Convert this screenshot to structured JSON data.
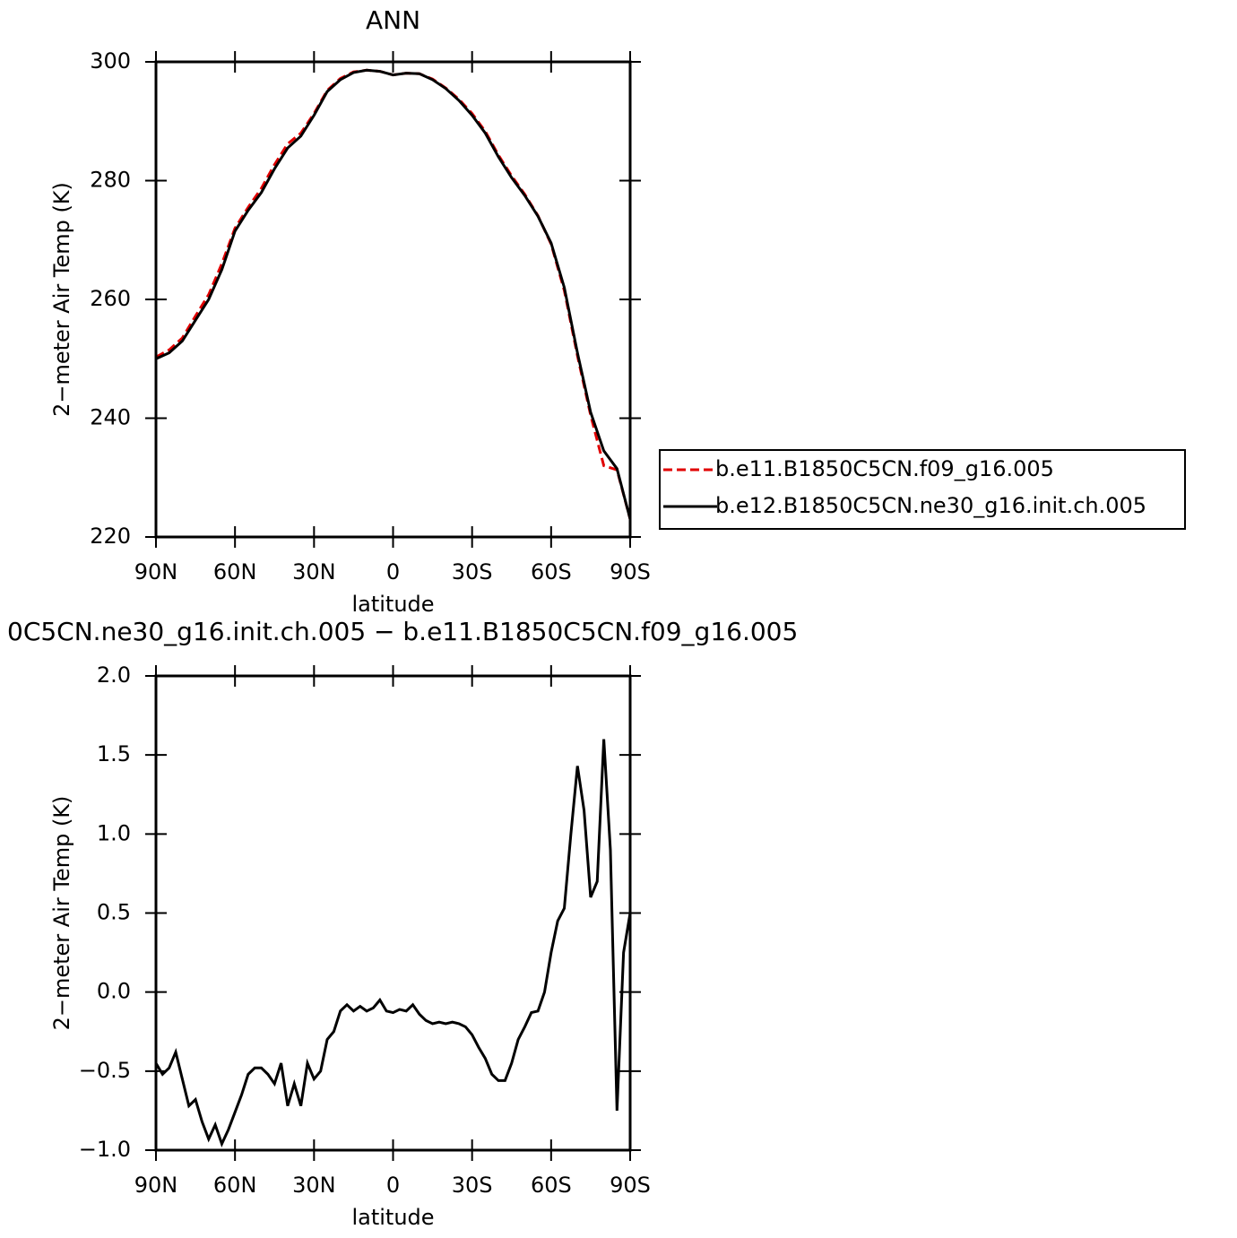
{
  "chart_data": [
    {
      "type": "line",
      "title": "ANN",
      "xlabel": "latitude",
      "ylabel": "2−meter Air Temp (K)",
      "x": [
        90,
        85,
        80,
        75,
        70,
        65,
        60,
        55,
        50,
        45,
        40,
        35,
        30,
        25,
        20,
        15,
        10,
        5,
        0,
        -5,
        -10,
        -15,
        -20,
        -25,
        -30,
        -35,
        -40,
        -45,
        -50,
        -55,
        -60,
        -65,
        -70,
        -75,
        -80,
        -85,
        -90
      ],
      "series": [
        {
          "name": "b.e11.B1850C5CN.f09_g16.005",
          "color": "#e00000",
          "linestyle": "dashed",
          "values": [
            250.3,
            251.5,
            253.5,
            257.2,
            260.8,
            266,
            272,
            275.5,
            278.7,
            282.7,
            286.2,
            288,
            291.3,
            295.2,
            297.2,
            298.3,
            298.6,
            298.4,
            297.8,
            298.1,
            298,
            297.1,
            295.6,
            293.7,
            291.3,
            288.3,
            284.3,
            280.8,
            277.7,
            274.1,
            269.3,
            261.5,
            250.5,
            240.5,
            232,
            231.3,
            223
          ]
        },
        {
          "name": "b.e12.B1850C5CN.ne30_g16.init.ch.005",
          "color": "#000000",
          "linestyle": "solid",
          "values": [
            250,
            251,
            253,
            256.5,
            260,
            265,
            271.5,
            275,
            278,
            282,
            285.5,
            287.5,
            291,
            295,
            297,
            298.2,
            298.6,
            298.4,
            297.8,
            298.1,
            298,
            297,
            295.5,
            293.5,
            291,
            288,
            284,
            280.5,
            277.5,
            274,
            269.5,
            262,
            251,
            241,
            234.5,
            231.5,
            223
          ]
        }
      ],
      "xlim": [
        90,
        -90
      ],
      "xticks": [
        {
          "value": 90,
          "label": "90N"
        },
        {
          "value": 60,
          "label": "60N"
        },
        {
          "value": 30,
          "label": "30N"
        },
        0,
        {
          "value": -30,
          "label": "30S"
        },
        {
          "value": -60,
          "label": "60S"
        },
        {
          "value": -90,
          "label": "90S"
        }
      ],
      "ylim": [
        220,
        300
      ],
      "yticks": [
        220,
        240,
        260,
        280,
        300
      ],
      "legend": "right"
    },
    {
      "type": "line",
      "title": "0C5CN.ne30_g16.init.ch.005 − b.e11.B1850C5CN.f09_g16.005",
      "xlabel": "latitude",
      "ylabel": "2−meter Air Temp (K)",
      "x": [
        90,
        87.5,
        85,
        82.5,
        80,
        77.5,
        75,
        72.5,
        70,
        67.5,
        65,
        62.5,
        60,
        57.5,
        55,
        52.5,
        50,
        47.5,
        45,
        42.5,
        40,
        37.5,
        35,
        32.5,
        30,
        27.5,
        25,
        22.5,
        20,
        17.5,
        15,
        12.5,
        10,
        7.5,
        5,
        2.5,
        0,
        -2.5,
        -5,
        -7.5,
        -10,
        -12.5,
        -15,
        -17.5,
        -20,
        -22.5,
        -25,
        -27.5,
        -30,
        -32.5,
        -35,
        -37.5,
        -40,
        -42.5,
        -45,
        -47.5,
        -50,
        -52.5,
        -55,
        -57.5,
        -60,
        -62.5,
        -65,
        -67.5,
        -70,
        -72.5,
        -75,
        -77.5,
        -80,
        -82.5,
        -85,
        -87.5,
        -90
      ],
      "series": [
        {
          "color": "#000000",
          "linestyle": "solid",
          "values": [
            -0.45,
            -0.52,
            -0.48,
            -0.38,
            -0.55,
            -0.72,
            -0.68,
            -0.82,
            -0.93,
            -0.84,
            -0.96,
            -0.87,
            -0.76,
            -0.65,
            -0.52,
            -0.48,
            -0.48,
            -0.52,
            -0.58,
            -0.45,
            -0.72,
            -0.58,
            -0.72,
            -0.45,
            -0.55,
            -0.5,
            -0.3,
            -0.25,
            -0.12,
            -0.08,
            -0.12,
            -0.09,
            -0.12,
            -0.1,
            -0.05,
            -0.12,
            -0.13,
            -0.11,
            -0.12,
            -0.08,
            -0.14,
            -0.18,
            -0.2,
            -0.19,
            -0.2,
            -0.19,
            -0.2,
            -0.22,
            -0.27,
            -0.35,
            -0.42,
            -0.52,
            -0.56,
            -0.56,
            -0.45,
            -0.3,
            -0.22,
            -0.13,
            -0.12,
            0.0,
            0.25,
            0.45,
            0.53,
            1.0,
            1.43,
            1.15,
            0.6,
            0.7,
            1.6,
            0.9,
            -0.75,
            0.25,
            0.5
          ]
        }
      ],
      "xlim": [
        90,
        -90
      ],
      "xticks": [
        {
          "value": 90,
          "label": "90N"
        },
        {
          "value": 60,
          "label": "60N"
        },
        {
          "value": 30,
          "label": "30N"
        },
        0,
        {
          "value": -30,
          "label": "30S"
        },
        {
          "value": -60,
          "label": "60S"
        },
        {
          "value": -90,
          "label": "90S"
        }
      ],
      "ylim": [
        -1,
        2
      ],
      "yticks": [
        {
          "value": -1,
          "label": "−1.0"
        },
        {
          "value": -0.5,
          "label": "−0.5"
        },
        {
          "value": 0,
          "label": "0.0"
        },
        {
          "value": 0.5,
          "label": "0.5"
        },
        {
          "value": 1,
          "label": "1.0"
        },
        {
          "value": 1.5,
          "label": "1.5"
        },
        {
          "value": 2,
          "label": "2.0"
        }
      ]
    }
  ]
}
